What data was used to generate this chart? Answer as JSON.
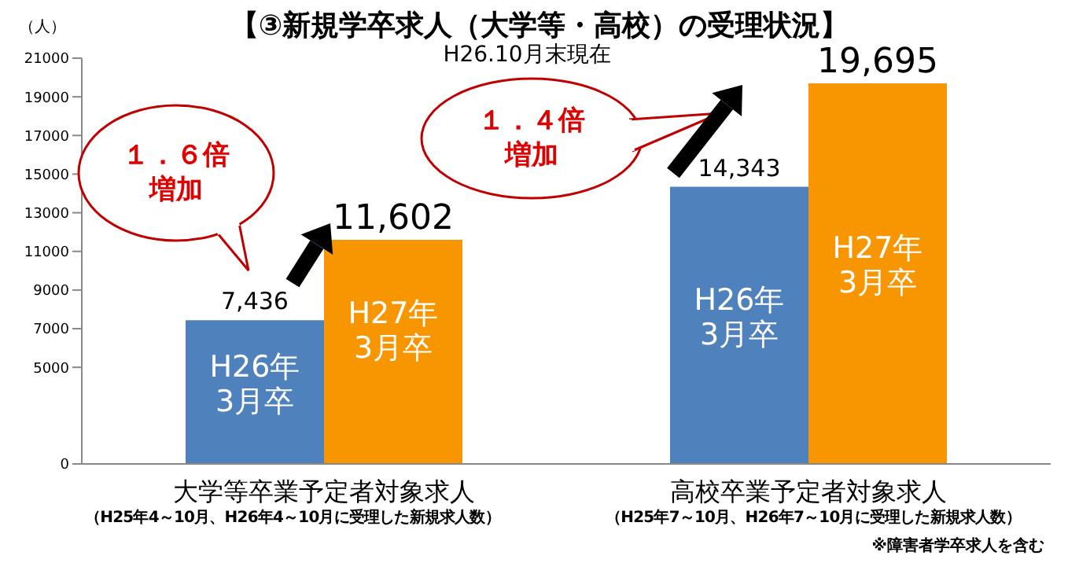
{
  "chart_data": {
    "type": "bar",
    "title": "【③新規学卒求人（大学等・高校）の受理状況】",
    "subtitle": "H26.10月末現在",
    "ylabel": "（人）",
    "categories": [
      "大学等卒業予定者対象求人",
      "高校卒業予定者対象求人"
    ],
    "series": [
      {
        "name": "H26年\n3月卒",
        "color": "#4f81bd",
        "values": [
          7436,
          14343
        ],
        "value_labels": [
          "7,436",
          "14,343"
        ]
      },
      {
        "name": "H27年\n3月卒",
        "color": "#f79600",
        "values": [
          11602,
          19695
        ],
        "value_labels": [
          "11,602",
          "19,695"
        ]
      }
    ],
    "ylim": [
      0,
      21000
    ],
    "yticks": [
      0,
      5000,
      7000,
      9000,
      11000,
      13000,
      15000,
      17000,
      19000,
      21000
    ],
    "annotations": [
      "１．６倍増加",
      "１．４倍増加",
      "（H25年4～10月、H26年4～10月に受理した新規求人数）",
      "（H25年7～10月、H26年7～10月に受理した新規求人数）",
      "※障害者学卒求人を含む"
    ],
    "grid": false,
    "legend": false
  }
}
